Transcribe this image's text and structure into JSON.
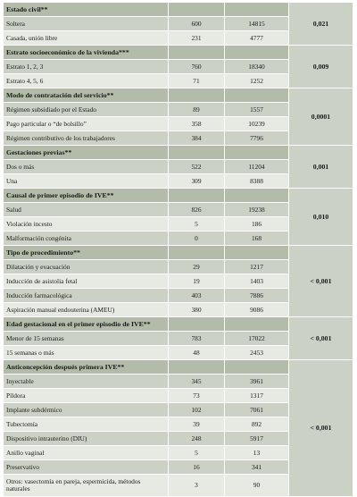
{
  "sections": [
    {
      "title": "Estado civil**",
      "p": "0,021",
      "rows": [
        [
          "Soltera",
          "600",
          "14815"
        ],
        [
          "Casada, unión libre",
          "231",
          "4777"
        ]
      ]
    },
    {
      "title": "Estrato socioeconómico de la vivienda***",
      "p": "0,009",
      "rows": [
        [
          "Estrato 1, 2, 3",
          "760",
          "18340"
        ],
        [
          "Estrato 4, 5, 6",
          "71",
          "1252"
        ]
      ]
    },
    {
      "title": "Modo de contratación del servicio**",
      "p": "0,0001",
      "rows": [
        [
          "Régimen subsidiado por el Estado",
          "89",
          "1557"
        ],
        [
          "Pago particular o “de bolsillo”",
          "358",
          "10239"
        ],
        [
          "Régimen contributivo de los trabajadores",
          "384",
          "7796"
        ]
      ]
    },
    {
      "title": "Gestaciones previas**",
      "p": "0,001",
      "rows": [
        [
          "Dos o más",
          "522",
          "11204"
        ],
        [
          "Una",
          "309",
          "8388"
        ]
      ]
    },
    {
      "title": "Causal de primer episodio de IVE**",
      "p": "0,010",
      "rows": [
        [
          "Salud",
          "826",
          "19238"
        ],
        [
          "Violación incesto",
          "5",
          "186"
        ],
        [
          "Malformación congénita",
          "0",
          "168"
        ]
      ]
    },
    {
      "title": "Tipo de procedimiento**",
      "p": "< 0,001",
      "rows": [
        [
          "Dilatación y evacuación",
          "29",
          "1217"
        ],
        [
          "Inducción de asistolia fetal",
          "19",
          "1403"
        ],
        [
          "Inducción farmacológica",
          "403",
          "7886"
        ],
        [
          "Aspiración manual endouterina (AMEU)",
          "380",
          "9086"
        ]
      ]
    },
    {
      "title": "Edad gestacional en el primer episodio de IVE**",
      "p": "< 0,001",
      "rows": [
        [
          "Menor de 15 semanas",
          "783",
          "17022"
        ],
        [
          "15 semanas o más",
          "48",
          "2453"
        ]
      ]
    },
    {
      "title": "Anticoncepción después primera IVE**",
      "p": "< 0,001",
      "rows": [
        [
          "Inyectable",
          "345",
          "3961"
        ],
        [
          "Píldora",
          "73",
          "1317"
        ],
        [
          "Implante subdérmico",
          "102",
          "7061"
        ],
        [
          "Tubectomía",
          "39",
          "892"
        ],
        [
          "Dispositivo intrauterino (DIU)",
          "248",
          "5917"
        ],
        [
          "Anillo vaginal",
          "5",
          "13"
        ],
        [
          "Preservativo",
          "16",
          "341"
        ],
        [
          "Otros: vasectomía en pareja, espermicida, métodos naturales",
          "3",
          "90"
        ]
      ]
    }
  ],
  "colors": {
    "header": "#b3bca8",
    "row_dark": "#ccd1c6",
    "row_light": "#e7eae3"
  }
}
